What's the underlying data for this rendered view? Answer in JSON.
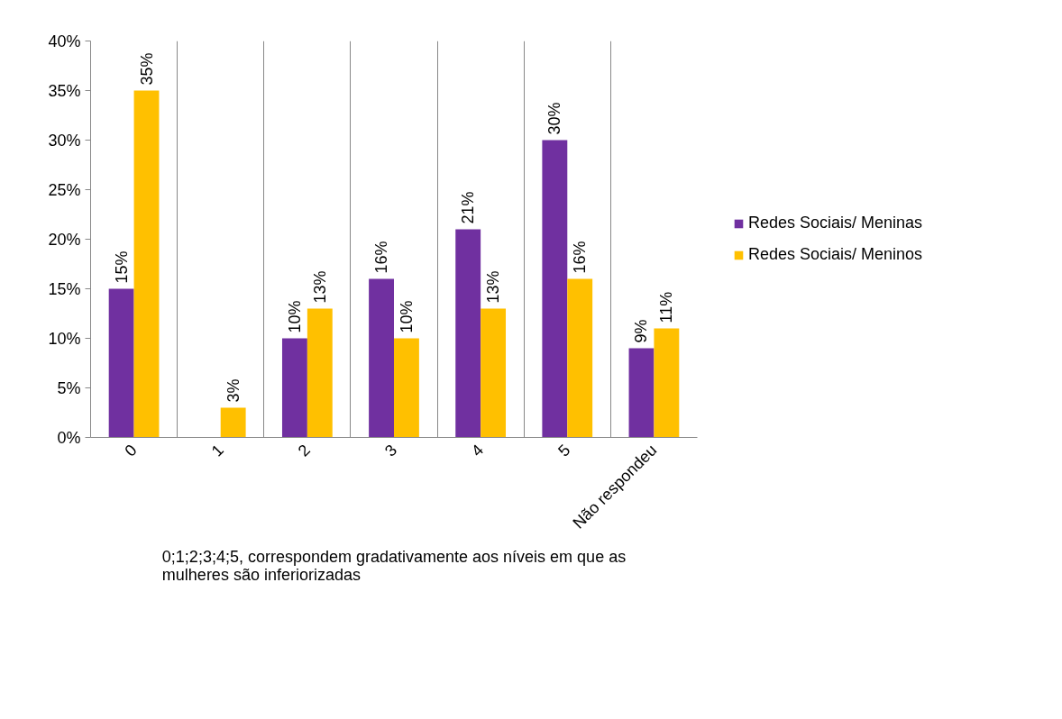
{
  "chart_data": {
    "type": "bar",
    "categories": [
      "0",
      "1",
      "2",
      "3",
      "4",
      "5",
      "Não respondeu"
    ],
    "series": [
      {
        "name": "Redes Sociais/ Meninas",
        "color": "#7030a0",
        "values": [
          15,
          null,
          10,
          16,
          21,
          30,
          9
        ],
        "value_labels": [
          "15%",
          null,
          "10%",
          "16%",
          "21%",
          "30%",
          "9%"
        ]
      },
      {
        "name": "Redes Sociais/ Meninos",
        "color": "#ffc000",
        "values": [
          35,
          3,
          13,
          10,
          13,
          16,
          11
        ],
        "value_labels": [
          "35%",
          "3%",
          "13%",
          "10%",
          "13%",
          "16%",
          "11%"
        ]
      }
    ],
    "ylim": [
      0,
      40
    ],
    "yticks": [
      {
        "value": 0,
        "label": "0%"
      },
      {
        "value": 5,
        "label": "5%"
      },
      {
        "value": 10,
        "label": "10%"
      },
      {
        "value": 15,
        "label": "15%"
      },
      {
        "value": 20,
        "label": "20%"
      },
      {
        "value": 25,
        "label": "25%"
      },
      {
        "value": 30,
        "label": "30%"
      },
      {
        "value": 35,
        "label": "35%"
      },
      {
        "value": 40,
        "label": "40%"
      }
    ],
    "grid": "x",
    "legend": "right",
    "annotations": [
      "0;1;2;3;4;5, correspondem gradativamente aos níveis em que as\nmulheres são inferiorizadas"
    ]
  }
}
